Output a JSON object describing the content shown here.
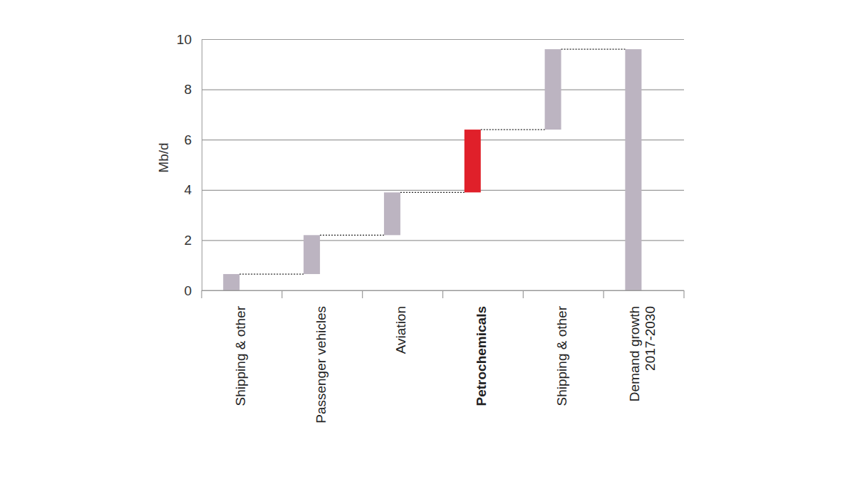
{
  "chart_data": {
    "type": "waterfall",
    "y_label": "Mb/d",
    "categories": [
      "Shipping & other",
      "Passenger vehicles",
      "Aviation",
      "Petrochemicals",
      "Shipping & other",
      "Demand growth\n2017-2030"
    ],
    "values": [
      0.65,
      1.55,
      1.7,
      2.5,
      3.2,
      9.6
    ],
    "colors": [
      "#bcb4c1",
      "#bcb4c1",
      "#bcb4c1",
      "#e0202a",
      "#bcb4c1",
      "#bcb4c1"
    ],
    "ylim": [
      0,
      10
    ],
    "yticks": [
      0,
      2,
      4,
      6,
      8,
      10
    ],
    "grid": true
  }
}
